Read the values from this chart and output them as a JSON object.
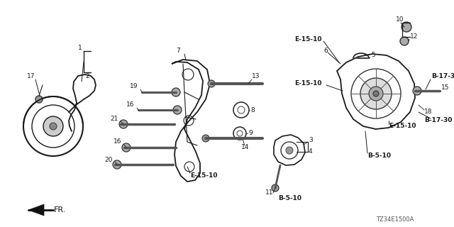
{
  "bg_color": "#ffffff",
  "diagram_ref": "TZ34E1500A",
  "fig_w": 6.4,
  "fig_h": 3.2,
  "dpi": 100,
  "xlim": [
    0,
    640
  ],
  "ylim": [
    0,
    320
  ]
}
